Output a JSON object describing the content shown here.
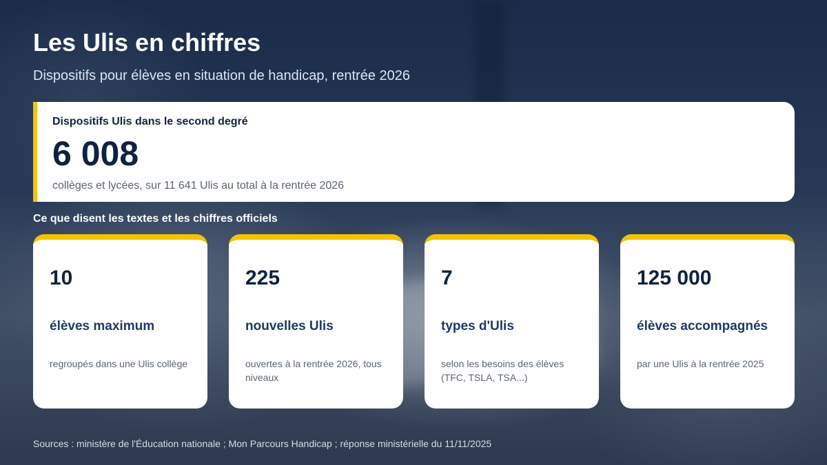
{
  "header": {
    "title": "Les Ulis en chiffres",
    "subtitle": "Dispositifs pour élèves en situation de handicap, rentrée 2026"
  },
  "hero": {
    "label": "Dispositifs Ulis dans le second degré",
    "value": "6 008",
    "caption": "collèges et lycées, sur 11 641 Ulis au total à la rentrée 2026"
  },
  "section": {
    "heading": "Ce que disent les textes et les chiffres officiels"
  },
  "cards": [
    {
      "value": "10",
      "label": "élèves maximum",
      "description": "regroupés dans une Ulis collège"
    },
    {
      "value": "225",
      "label": "nouvelles Ulis",
      "description": "ouvertes à la rentrée 2026, tous niveaux"
    },
    {
      "value": "7",
      "label": "types d'Ulis",
      "description": "selon les besoins des élèves (TFC, TSLA, TSA...)"
    },
    {
      "value": "125 000",
      "label": "élèves accompagnés",
      "description": "par une Ulis à la rentrée 2025"
    }
  ],
  "footer": {
    "sources": "Sources : ministère de l'Éducation nationale ; Mon Parcours Handicap ; réponse ministérielle du 11/11/2025"
  },
  "colors": {
    "accent": "#f5c400",
    "navy": "#0f2340",
    "card_label": "#1e3a66",
    "muted_text": "#5b6474"
  }
}
